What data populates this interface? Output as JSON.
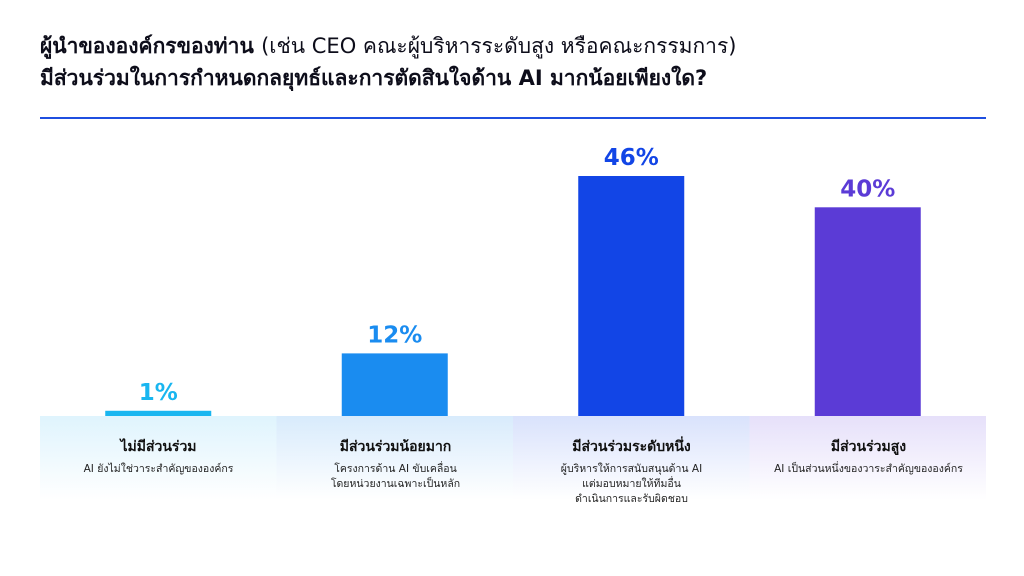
{
  "title": {
    "line1_bold": "ผู้นำขององค์กรของท่าน",
    "line1_rest": "(เช่น CEO คณะผู้บริหารระดับสูง หรือคณะกรรมการ)",
    "line2": "มีส่วนร่วมในการกำหนดกลยุทธ์และการตัดสินใจด้าน AI มากน้อยเพียงใด?"
  },
  "chart_data": {
    "type": "bar",
    "categories": [
      "ไม่มีส่วนร่วม",
      "มีส่วนร่วมน้อยมาก",
      "มีส่วนร่วมระดับหนึ่ง",
      "มีส่วนร่วมสูง"
    ],
    "descriptions": [
      "AI ยังไม่ใช่วาระสำคัญขององค์กร",
      "โครงการด้าน AI ขับเคลื่อน\nโดยหน่วยงานเฉพาะเป็นหลัก",
      "ผู้บริหารให้การสนับสนุนด้าน AI\nแต่มอบหมายให้ทีมอื่น\nดำเนินการและรับผิดชอบ",
      "AI เป็นส่วนหนึ่งของวาระสำคัญขององค์กร"
    ],
    "values": [
      1,
      12,
      46,
      40
    ],
    "value_labels": [
      "1%",
      "12%",
      "46%",
      "40%"
    ],
    "ylim": [
      0,
      46
    ],
    "bar_colors": [
      "#19b6f0",
      "#1a8cf0",
      "#1245e6",
      "#5b3bd6"
    ],
    "band_colors": [
      "#dff4fd",
      "#d8ebfc",
      "#d9e2fc",
      "#e6e0fa"
    ],
    "grid": false
  }
}
